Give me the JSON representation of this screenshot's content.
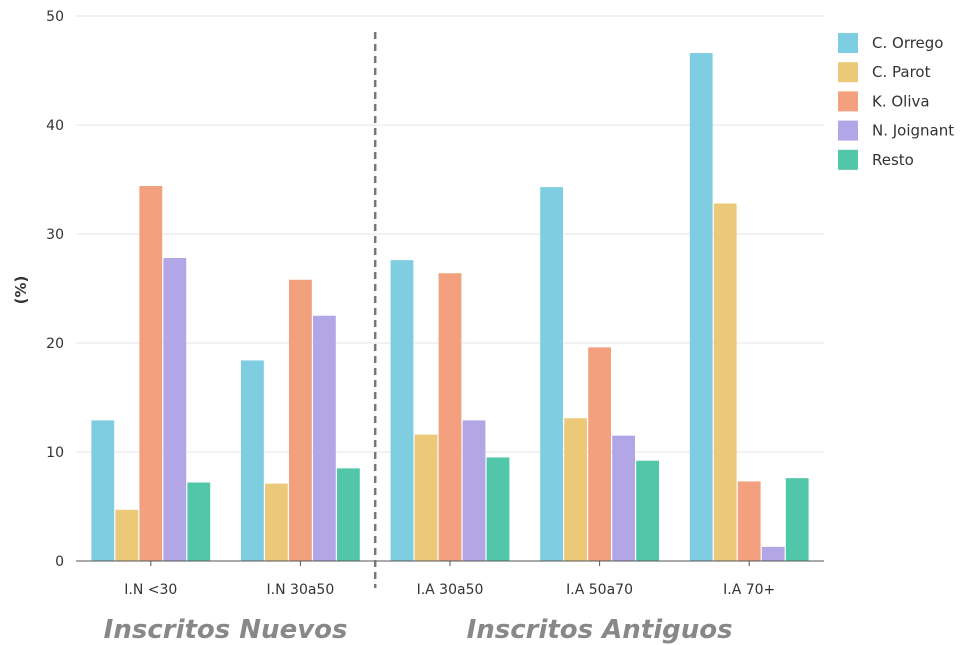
{
  "chart_data": {
    "type": "bar",
    "ylabel": "(%)",
    "xlabel": "",
    "ylim": [
      0,
      50
    ],
    "yticks": [
      "0",
      "10",
      "20",
      "30",
      "40",
      "50"
    ],
    "categories": [
      "I.N <30",
      "I.N 30a50",
      "I.A 30a50",
      "I.A 50a70",
      "I.A 70+"
    ],
    "series": [
      {
        "name": "C. Orrego",
        "color": "#7ecde0",
        "values": [
          12.9,
          18.4,
          27.6,
          34.3,
          46.6
        ]
      },
      {
        "name": "C. Parot",
        "color": "#ecc978",
        "values": [
          4.7,
          7.1,
          11.6,
          13.1,
          32.8
        ]
      },
      {
        "name": "K. Oliva",
        "color": "#f2a07d",
        "values": [
          34.4,
          25.8,
          26.4,
          19.6,
          7.3
        ]
      },
      {
        "name": "N. Joignant",
        "color": "#b2a6e6",
        "values": [
          27.8,
          22.5,
          12.9,
          11.5,
          1.3
        ]
      },
      {
        "name": "Resto",
        "color": "#52c6a9",
        "values": [
          7.2,
          8.5,
          9.5,
          9.2,
          7.6
        ]
      }
    ],
    "groups": [
      {
        "title": "Inscritos Nuevos",
        "categories": [
          0,
          1
        ]
      },
      {
        "title": "Inscritos Antiguos",
        "categories": [
          2,
          3,
          4
        ]
      }
    ],
    "grid": true,
    "legend_position": "right"
  }
}
